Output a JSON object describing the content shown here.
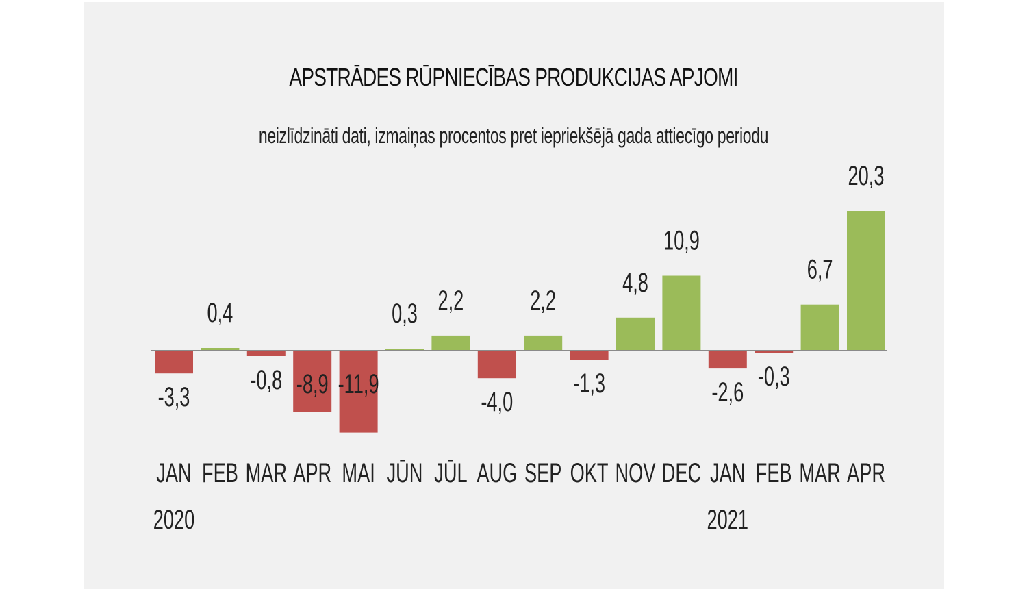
{
  "chart_data": {
    "type": "bar",
    "title": "APSTRĀDES RŪPNIECĪBAS PRODUKCIJAS APJOMI",
    "subtitle": "neizlīdzināti dati, izmaiņas procentos pret iepriekšējā gada attiecīgo periodu",
    "categories": [
      "JAN",
      "FEB",
      "MAR",
      "APR",
      "MAI",
      "JŪN",
      "JŪL",
      "AUG",
      "SEP",
      "OKT",
      "NOV",
      "DEC",
      "JAN",
      "FEB",
      "MAR",
      "APR"
    ],
    "value_labels": [
      "-3,3",
      "0,4",
      "-0,8",
      "-8,9",
      "-11,9",
      "0,3",
      "2,2",
      "-4,0",
      "2,2",
      "-1,3",
      "4,8",
      "10,9",
      "-2,6",
      "-0,3",
      "6,7",
      "20,3"
    ],
    "values": [
      -3.3,
      0.4,
      -0.8,
      -8.9,
      -11.9,
      0.3,
      2.2,
      -4.0,
      2.2,
      -1.3,
      4.8,
      10.9,
      -2.6,
      -0.3,
      6.7,
      20.3
    ],
    "year_labels": [
      {
        "index": 0,
        "label": "2020"
      },
      {
        "index": 12,
        "label": "2021"
      }
    ],
    "ylim": [
      -12,
      21
    ],
    "xlabel": "",
    "ylabel": "",
    "grid": false,
    "legend": "none",
    "colors": {
      "positive": "#9bbb59",
      "negative": "#c0504d",
      "axis": "#8a8a8a"
    }
  }
}
